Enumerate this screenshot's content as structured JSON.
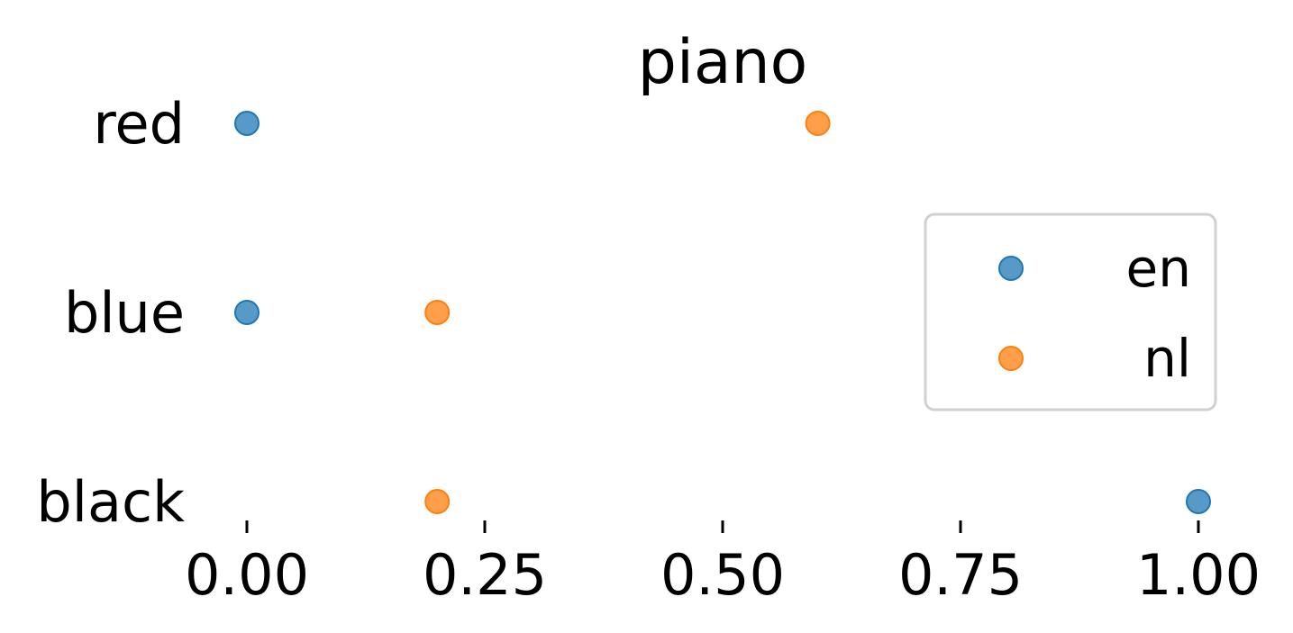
{
  "chart_data": {
    "type": "scatter",
    "title": "piano",
    "categories": [
      "red",
      "blue",
      "black"
    ],
    "x_ticks": [
      "0.00",
      "0.25",
      "0.50",
      "0.75",
      "1.00"
    ],
    "xlim": [
      0.0,
      1.0
    ],
    "xlabel": "",
    "ylabel": "",
    "grid": false,
    "legend_position": "right",
    "series": [
      {
        "name": "en",
        "color": "#1f77b4",
        "values": [
          0.0,
          0.0,
          1.0
        ]
      },
      {
        "name": "nl",
        "color": "#ff7f0e",
        "values": [
          0.6,
          0.2,
          0.2
        ]
      }
    ]
  }
}
